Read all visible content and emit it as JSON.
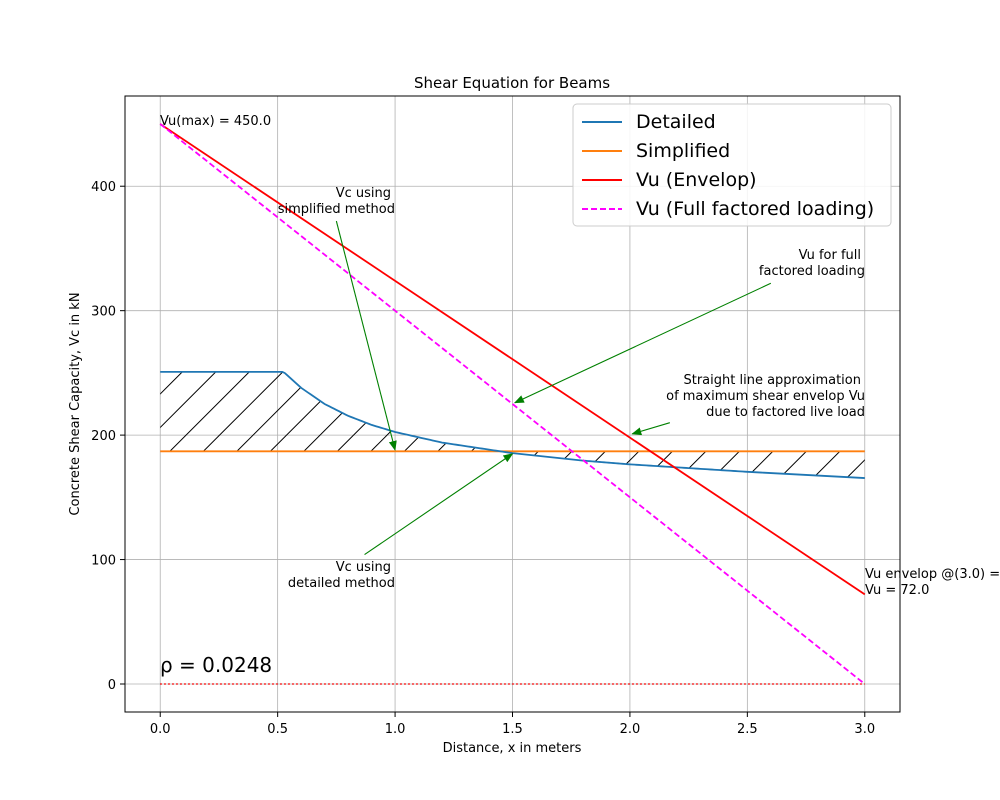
{
  "chart_data": {
    "type": "line",
    "title": "Shear Equation for Beams",
    "xlabel": "Distance, x in meters",
    "ylabel": "Concrete Shear Capacity, Vc in kN",
    "xlim": [
      -0.15,
      3.15
    ],
    "ylim": [
      -22.5,
      472.5
    ],
    "xticks": [
      0.0,
      0.5,
      1.0,
      1.5,
      2.0,
      2.5,
      3.0
    ],
    "xtick_labels": [
      "0.0",
      "0.5",
      "1.0",
      "1.5",
      "2.0",
      "2.5",
      "3.0"
    ],
    "yticks": [
      0,
      100,
      200,
      300,
      400
    ],
    "ytick_labels": [
      "0",
      "100",
      "200",
      "300",
      "400"
    ],
    "grid": true,
    "legend_position": "top-right",
    "series": [
      {
        "name": "Detailed",
        "color": "#1f77b4",
        "x": [
          0.0,
          0.525,
          0.6,
          0.7,
          0.8,
          0.9,
          1.0,
          1.2,
          1.5,
          1.8,
          2.0,
          2.5,
          3.0
        ],
        "y": [
          250.8,
          250.8,
          238.0,
          225.0,
          215.5,
          208.2,
          202.5,
          194.0,
          185.5,
          179.5,
          176.5,
          170.5,
          165.5
        ]
      },
      {
        "name": "Simplified",
        "color": "#ff7f0e",
        "x": [
          0.0,
          3.0
        ],
        "y": [
          187.0,
          187.0
        ]
      },
      {
        "name": "Vu (Envelop)",
        "color": "#ff0000",
        "x": [
          0.0,
          3.0
        ],
        "y": [
          450.0,
          72.0
        ]
      },
      {
        "name": "Vu (Full factored loading)",
        "color": "#ff00ff",
        "dashed": true,
        "x": [
          0.0,
          3.0
        ],
        "y": [
          450.0,
          0.0
        ]
      }
    ],
    "baseline": {
      "color": "#ff0000",
      "dotted": true,
      "x": [
        0.0,
        3.0
      ],
      "y": [
        0.0,
        0.0
      ]
    },
    "hatch_region": {
      "between": [
        "Detailed",
        "Simplified"
      ],
      "x_range": [
        0.0,
        3.0
      ]
    },
    "annotations": {
      "vu_max": "Vu(max) = 450.0",
      "vc_simplified_l1": "Vc using",
      "vc_simplified_l2": "simplified method",
      "vu_full_l1": "Vu for full",
      "vu_full_l2": "factored loading",
      "straight_l1": "Straight line approximation",
      "straight_l2": "of maximum shear envelop Vu",
      "straight_l3": "due to factored live load",
      "vc_detailed_l1": "Vc using",
      "vc_detailed_l2": "detailed method",
      "vu_env_l1": "Vu envelop @(3.0) =",
      "vu_env_l2": "Vu = 72.0",
      "rho": "ρ = 0.0248"
    },
    "arrows": [
      {
        "from": [
          0.75,
          372.0
        ],
        "to": [
          1.0,
          188.0
        ]
      },
      {
        "from": [
          2.6,
          322.0
        ],
        "to": [
          1.51,
          226.0
        ]
      },
      {
        "from": [
          2.17,
          210.0
        ],
        "to": [
          2.01,
          201.0
        ]
      },
      {
        "from": [
          0.87,
          104.0
        ],
        "to": [
          1.5,
          185.0
        ]
      }
    ],
    "arrow_color": "#008000"
  }
}
